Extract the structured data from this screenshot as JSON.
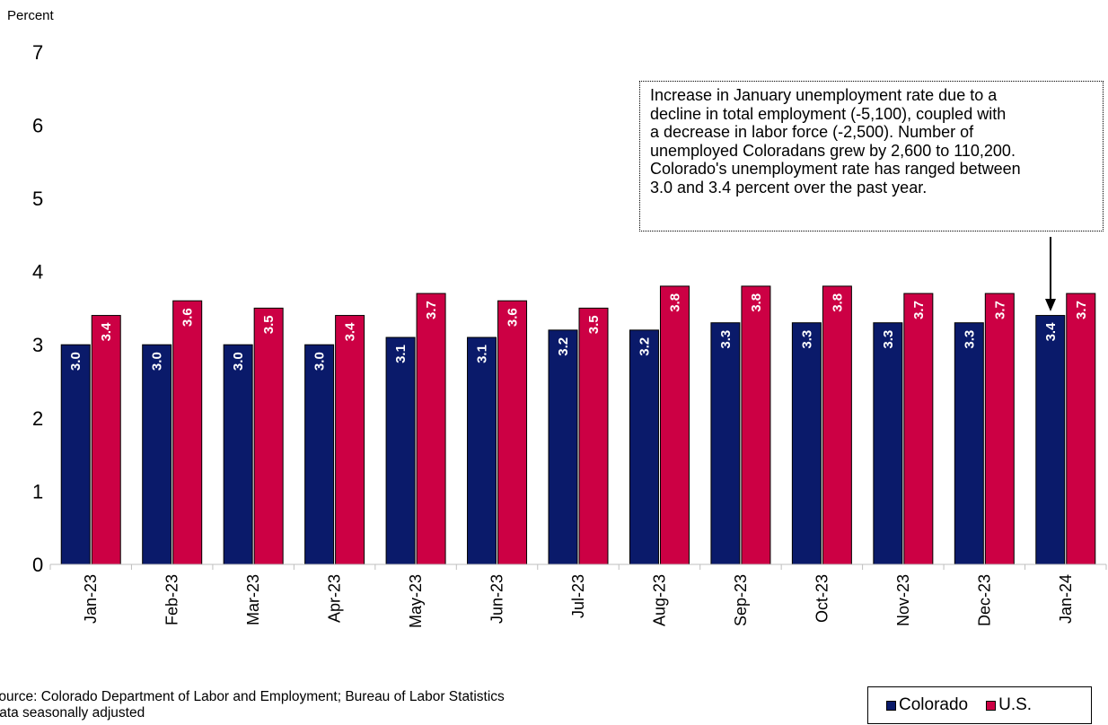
{
  "chart_data": {
    "type": "bar",
    "ylabel": "Percent",
    "ylim": [
      0,
      7
    ],
    "yticks": [
      0,
      1,
      2,
      3,
      4,
      5,
      6,
      7
    ],
    "categories": [
      "Jan-23",
      "Feb-23",
      "Mar-23",
      "Apr-23",
      "May-23",
      "Jun-23",
      "Jul-23",
      "Aug-23",
      "Sep-23",
      "Oct-23",
      "Nov-23",
      "Dec-23",
      "Jan-24"
    ],
    "series": [
      {
        "name": "Colorado",
        "color": "#0a1a6a",
        "values": [
          3.0,
          3.0,
          3.0,
          3.0,
          3.1,
          3.1,
          3.2,
          3.2,
          3.3,
          3.3,
          3.3,
          3.3,
          3.4
        ]
      },
      {
        "name": "U.S.",
        "color": "#cc0044",
        "values": [
          3.4,
          3.6,
          3.5,
          3.4,
          3.7,
          3.6,
          3.5,
          3.8,
          3.8,
          3.8,
          3.7,
          3.7,
          3.7
        ]
      }
    ],
    "data_labels": {
      "Colorado": [
        "3.0",
        "3.0",
        "3.0",
        "3.0",
        "3.1",
        "3.1",
        "3.2",
        "3.2",
        "3.3",
        "3.3",
        "3.3",
        "3.3",
        "3.4"
      ],
      "U.S.": [
        "3.4",
        "3.6",
        "3.5",
        "3.4",
        "3.7",
        "3.6",
        "3.5",
        "3.8",
        "3.8",
        "3.8",
        "3.7",
        "3.7",
        "3.7"
      ]
    },
    "annotation": {
      "lines": [
        "Increase in January unemployment rate due to a",
        "decline in total employment (-5,100), coupled with",
        "a decrease in labor force (-2,500). Number of",
        "unemployed Coloradans grew by 2,600 to 110,200.",
        "Colorado's unemployment rate has ranged between",
        "3.0 and 3.4 percent over the past year."
      ],
      "points_to": "Jan-24"
    },
    "legend": {
      "position": "bottom-right",
      "items": [
        "Colorado",
        "U.S."
      ]
    },
    "grid": false
  },
  "footnote": {
    "source": "Source: Colorado Department of Labor and Employment; Bureau of Labor Statistics",
    "note": "Data seasonally adjusted"
  }
}
